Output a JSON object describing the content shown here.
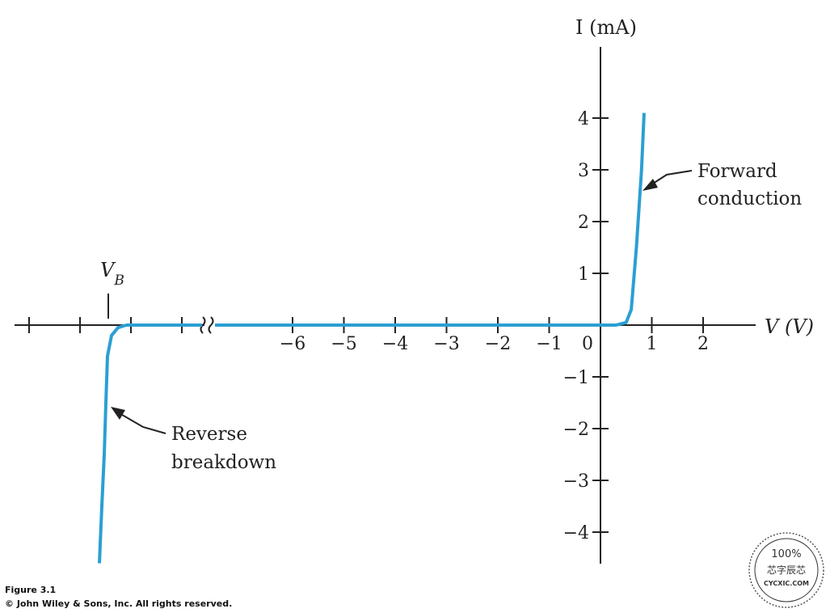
{
  "caption": {
    "figure_label": "Figure 3.1",
    "copyright": "© John Wiley & Sons, Inc. All rights reserved."
  },
  "watermark": {
    "percent": "100%",
    "chinese": "芯字辰芯",
    "site": "CYCXIC.COM"
  },
  "chart_data": {
    "type": "line",
    "title": "",
    "xlabel": "V (V)",
    "ylabel": "I (mA)",
    "x_axis_break": true,
    "xlim": [
      -7,
      3
    ],
    "ylim": [
      -4.5,
      4.5
    ],
    "x_ticks": [
      -6,
      -5,
      -4,
      -3,
      -2,
      -1,
      0,
      1,
      2
    ],
    "x_tick_labels": [
      "−6",
      "−5",
      "−4",
      "−3",
      "−2",
      "−1",
      "0",
      "1",
      "2"
    ],
    "y_ticks": [
      -4,
      -3,
      -2,
      -1,
      1,
      2,
      3,
      4
    ],
    "y_tick_labels": [
      "−4",
      "−3",
      "−2",
      "−1",
      "1",
      "2",
      "3",
      "4"
    ],
    "breakdown_marker": {
      "label": "V",
      "subscript": "B"
    },
    "series": [
      {
        "color": "#2b9fd3",
        "segments": [
          {
            "region": "breakdown (beyond axis break)",
            "y": [
              -4.6,
              -3.5,
              -2.5,
              -1.5,
              -0.6,
              -0.2,
              -0.05,
              0
            ]
          },
          {
            "region": "main",
            "x": [
              -7,
              -2,
              0,
              0.3,
              0.5,
              0.6,
              0.7,
              0.8,
              0.85
            ],
            "y": [
              0,
              0,
              0,
              0,
              0.05,
              0.3,
              1.5,
              3.0,
              4.1
            ]
          }
        ]
      }
    ],
    "annotations": [
      {
        "name": "forward-conduction",
        "lines": [
          "Forward",
          "conduction"
        ]
      },
      {
        "name": "reverse-breakdown",
        "lines": [
          "Reverse",
          "breakdown"
        ]
      }
    ]
  }
}
